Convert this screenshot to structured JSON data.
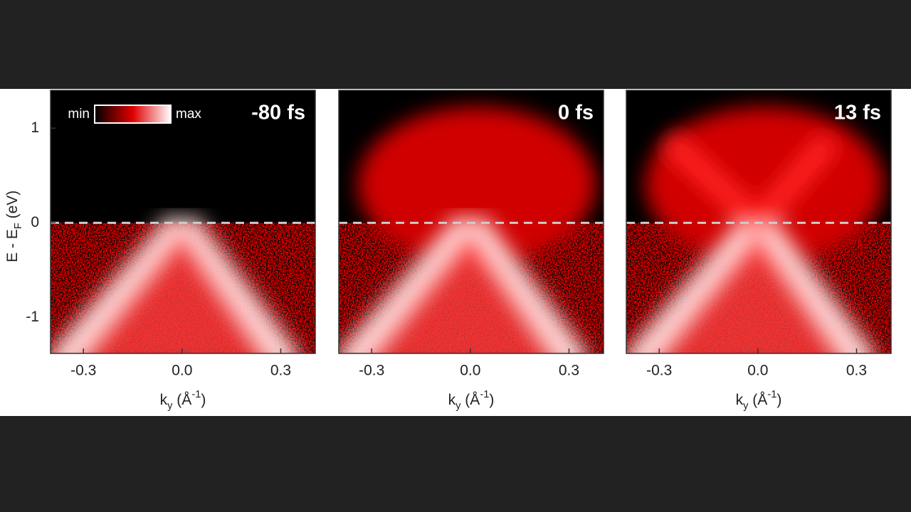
{
  "chart_data": [
    {
      "type": "intensity-map",
      "title": "-80 fs",
      "xlim": [
        -0.4,
        0.405
      ],
      "ylim": [
        -1.38,
        1.4
      ],
      "xticks": [
        {
          "value": -0.3,
          "label": "-0.3"
        },
        {
          "value": 0,
          "label": "0.0"
        },
        {
          "value": 0.3,
          "label": "0.3"
        }
      ],
      "yticks": [
        -1,
        0,
        1
      ],
      "reference_line": 0,
      "x_label": [
        "k",
        "y",
        " (Å",
        "-1",
        ")"
      ],
      "y_label": [
        "E - E",
        "F",
        " (eV)"
      ],
      "colorbar": {
        "min_label": "min",
        "max_label": "max"
      }
    },
    {
      "type": "intensity-map",
      "title": "0 fs",
      "xlim": [
        -0.4,
        0.405
      ],
      "ylim": [
        -1.38,
        1.4
      ],
      "xticks": [
        {
          "value": -0.3,
          "label": "-0.3"
        },
        {
          "value": 0,
          "label": "0.0"
        },
        {
          "value": 0.3,
          "label": "0.3"
        }
      ],
      "reference_line": 0,
      "x_label": [
        "k",
        "y",
        " (Å",
        "-1",
        ")"
      ]
    },
    {
      "type": "intensity-map",
      "title": "13 fs",
      "xlim": [
        -0.4,
        0.405
      ],
      "ylim": [
        -1.38,
        1.4
      ],
      "xticks": [
        {
          "value": -0.3,
          "label": "-0.3"
        },
        {
          "value": 0,
          "label": "0.0"
        },
        {
          "value": 0.3,
          "label": "0.3"
        }
      ],
      "reference_line": 0,
      "x_label": [
        "k",
        "y",
        " (Å",
        "-1",
        ")"
      ]
    }
  ]
}
